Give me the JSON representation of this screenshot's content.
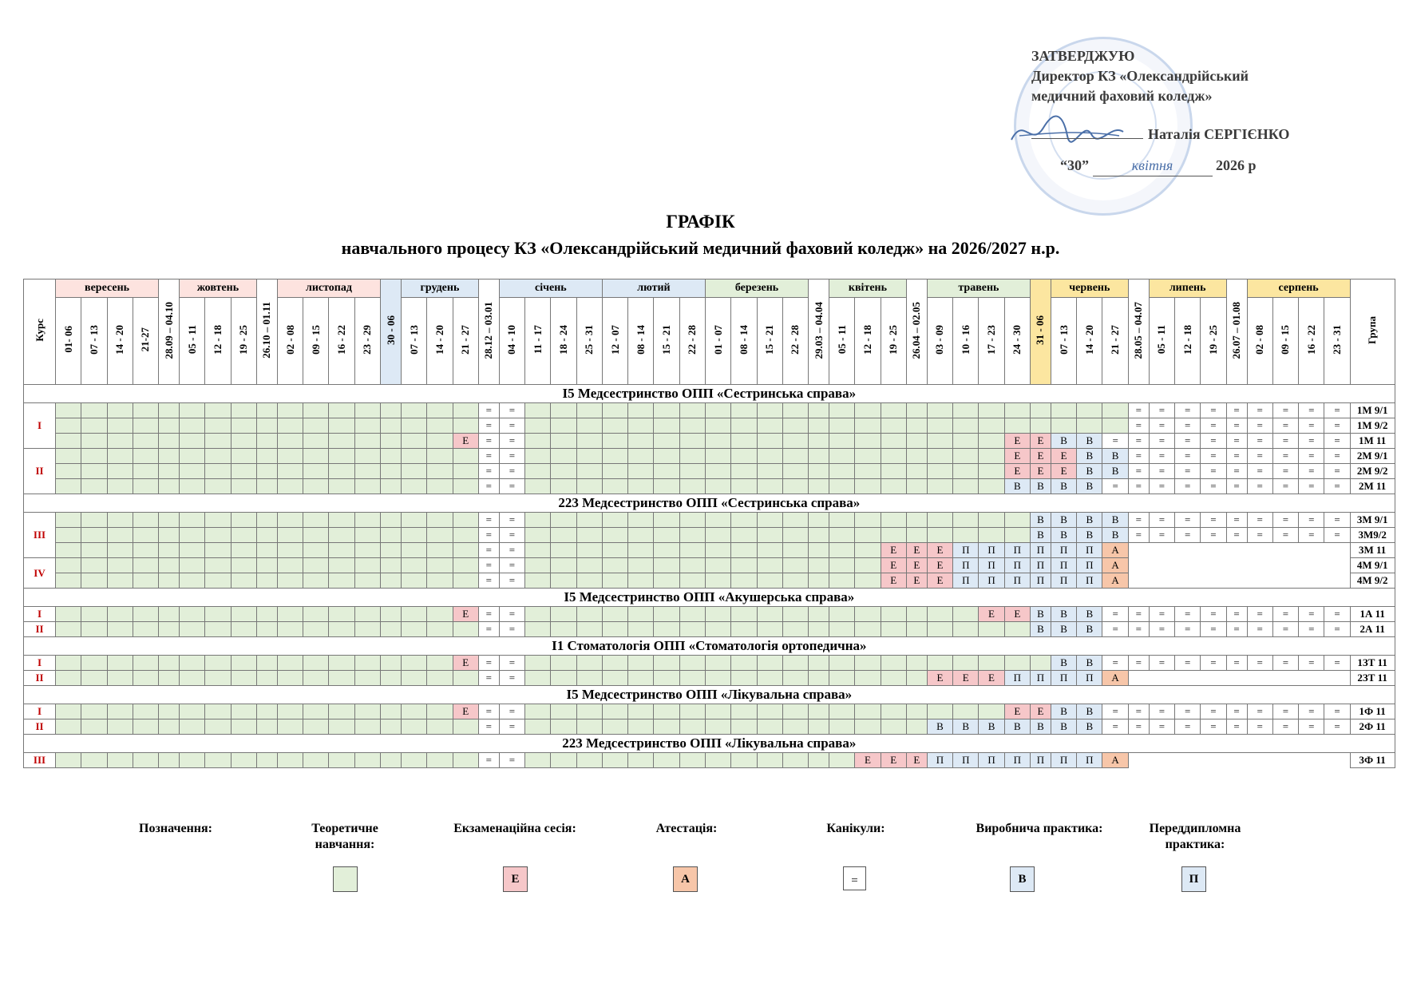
{
  "approval": {
    "line1": "ЗАТВЕРДЖУЮ",
    "line2": "Директор  КЗ «Олександрійський",
    "line3": "медичний фаховий коледж»",
    "director": "Наталія СЕРГІЄНКО",
    "date_day": "“30”",
    "date_month": "квітня",
    "date_year": "2026 р"
  },
  "title": "ГРАФІК",
  "subtitle": "навчального процесу КЗ «Олександрійський медичний фаховий коледж» на 2026/2027 н.р.",
  "headers": {
    "kurs": "Курс",
    "grupa": "Група",
    "months": [
      {
        "label": "вересень",
        "span": 4,
        "color": "pink"
      },
      {
        "label": "",
        "span": 1,
        "vertical": "28.09 – 04.10",
        "color": "white"
      },
      {
        "label": "жовтень",
        "span": 3,
        "color": "pink"
      },
      {
        "label": "",
        "span": 1,
        "vertical": "26.10 – 01.11",
        "color": "white"
      },
      {
        "label": "листопад",
        "span": 4,
        "color": "pink"
      },
      {
        "label": "",
        "span": 1,
        "vertical": "30 - 06",
        "color": "blue"
      },
      {
        "label": "грудень",
        "span": 3,
        "color": "blue"
      },
      {
        "label": "",
        "span": 1,
        "vertical": "28.12 – 03.01",
        "color": "white"
      },
      {
        "label": "січень",
        "span": 4,
        "color": "blue"
      },
      {
        "label": "лютий",
        "span": 4,
        "color": "blue"
      },
      {
        "label": "березень",
        "span": 4,
        "color": "green"
      },
      {
        "label": "",
        "span": 1,
        "vertical": "29.03 – 04.04",
        "color": "white"
      },
      {
        "label": "квітень",
        "span": 3,
        "color": "green"
      },
      {
        "label": "",
        "span": 1,
        "vertical": "26.04 – 02.05",
        "color": "white"
      },
      {
        "label": "травень",
        "span": 4,
        "color": "green"
      },
      {
        "label": "",
        "span": 1,
        "vertical": "31 - 06",
        "color": "yellow"
      },
      {
        "label": "червень",
        "span": 3,
        "color": "yellow"
      },
      {
        "label": "",
        "span": 1,
        "vertical": "28.05 – 04.07",
        "color": "white"
      },
      {
        "label": "липень",
        "span": 3,
        "color": "yellow"
      },
      {
        "label": "",
        "span": 1,
        "vertical": "26.07 – 01.08",
        "color": "white"
      },
      {
        "label": "серпень",
        "span": 4,
        "color": "yellow"
      }
    ],
    "weeks": [
      "01- 06",
      "07 - 13",
      "14 - 20",
      "21-27",
      "28.09 – 04.10",
      "05 - 11",
      "12 - 18",
      "19 - 25",
      "26.10 – 01.11",
      "02 - 08",
      "09 - 15",
      "16 - 22",
      "23 - 29",
      "30 - 06",
      "07 - 13",
      "14 - 20",
      "21 - 27",
      "28.12 – 03.01",
      "04 - 10",
      "11 - 17",
      "18 - 24",
      "25 - 31",
      "12 - 07",
      "08 - 14",
      "15 - 21",
      "22 - 28",
      "01 - 07",
      "08 - 14",
      "15 - 21",
      "22 - 28",
      "29.03 – 04.04",
      "05 - 11",
      "12 - 18",
      "19 - 25",
      "26.04 – 02.05",
      "03 - 09",
      "10 - 16",
      "17 - 23",
      "24 - 30",
      "31 - 06",
      "07 - 13",
      "14 - 20",
      "21 - 27",
      "28.05 – 04.07",
      "05 - 11",
      "12 - 18",
      "19 - 25",
      "26.07 – 01.08",
      "02 - 08",
      "09 - 15",
      "16 - 22",
      "23 - 31"
    ]
  },
  "sections": [
    {
      "title": "І5 Медсестринство ОПП «Сестринська справа»",
      "courses": [
        {
          "kurs": "І",
          "rows": [
            {
              "grupa": "1М 9/1",
              "runs": [
                [
                  "t",
                  17
                ],
                [
                  "k",
                  2
                ],
                [
                  "t",
                  24
                ],
                [
                  "k",
                  9
                ]
              ]
            },
            {
              "grupa": "1М 9/2",
              "runs": [
                [
                  "t",
                  17
                ],
                [
                  "k",
                  2
                ],
                [
                  "t",
                  24
                ],
                [
                  "k",
                  9
                ]
              ]
            },
            {
              "grupa": "1М 11",
              "runs": [
                [
                  "t",
                  16
                ],
                [
                  "e",
                  1
                ],
                [
                  "k",
                  2
                ],
                [
                  "t",
                  19
                ],
                [
                  "e",
                  2
                ],
                [
                  "v",
                  2
                ],
                [
                  "k",
                  10
                ]
              ]
            }
          ]
        },
        {
          "kurs": "ІІ",
          "rows": [
            {
              "grupa": "2М 9/1",
              "runs": [
                [
                  "t",
                  17
                ],
                [
                  "k",
                  2
                ],
                [
                  "t",
                  19
                ],
                [
                  "e",
                  3
                ],
                [
                  "v",
                  2
                ],
                [
                  "k",
                  9
                ]
              ]
            },
            {
              "grupa": "2М 9/2",
              "runs": [
                [
                  "t",
                  17
                ],
                [
                  "k",
                  2
                ],
                [
                  "t",
                  19
                ],
                [
                  "e",
                  3
                ],
                [
                  "v",
                  2
                ],
                [
                  "k",
                  9
                ]
              ]
            },
            {
              "grupa": "2М 11",
              "runs": [
                [
                  "t",
                  17
                ],
                [
                  "k",
                  2
                ],
                [
                  "t",
                  19
                ],
                [
                  "v",
                  4
                ],
                [
                  "k",
                  10
                ]
              ]
            }
          ]
        }
      ]
    },
    {
      "title": "223 Медсестринство ОПП «Сестринська справа»",
      "courses": [
        {
          "kurs": "ІІІ",
          "rows": [
            {
              "grupa": "3М 9/1",
              "runs": [
                [
                  "t",
                  17
                ],
                [
                  "k",
                  2
                ],
                [
                  "t",
                  20
                ],
                [
                  "v",
                  4
                ],
                [
                  "k",
                  9
                ]
              ]
            },
            {
              "grupa": "3М9/2",
              "runs": [
                [
                  "t",
                  17
                ],
                [
                  "k",
                  2
                ],
                [
                  "t",
                  20
                ],
                [
                  "v",
                  4
                ],
                [
                  "k",
                  9
                ]
              ]
            },
            {
              "grupa": "3М 11",
              "runs": [
                [
                  "t",
                  17
                ],
                [
                  "k",
                  2
                ],
                [
                  "t",
                  14
                ],
                [
                  "e",
                  3
                ],
                [
                  "p",
                  6
                ],
                [
                  "a",
                  1
                ],
                [
                  "n",
                  9
                ]
              ]
            }
          ]
        },
        {
          "kurs": "IV",
          "rows": [
            {
              "grupa": "4М 9/1",
              "runs": [
                [
                  "t",
                  17
                ],
                [
                  "k",
                  2
                ],
                [
                  "t",
                  14
                ],
                [
                  "e",
                  3
                ],
                [
                  "p",
                  6
                ],
                [
                  "a",
                  1
                ],
                [
                  "n",
                  9
                ]
              ]
            },
            {
              "grupa": "4М 9/2",
              "runs": [
                [
                  "t",
                  17
                ],
                [
                  "k",
                  2
                ],
                [
                  "t",
                  14
                ],
                [
                  "e",
                  3
                ],
                [
                  "p",
                  6
                ],
                [
                  "a",
                  1
                ],
                [
                  "n",
                  9
                ]
              ]
            }
          ]
        }
      ]
    },
    {
      "title": "І5 Медсестринство ОПП «Акушерська справа»",
      "courses": [
        {
          "kurs": "І",
          "rows": [
            {
              "grupa": "1А 11",
              "runs": [
                [
                  "t",
                  16
                ],
                [
                  "e",
                  1
                ],
                [
                  "k",
                  2
                ],
                [
                  "t",
                  18
                ],
                [
                  "e",
                  2
                ],
                [
                  "v",
                  3
                ],
                [
                  "k",
                  10
                ]
              ]
            }
          ]
        },
        {
          "kurs": "ІІ",
          "rows": [
            {
              "grupa": "2А 11",
              "runs": [
                [
                  "t",
                  17
                ],
                [
                  "k",
                  2
                ],
                [
                  "t",
                  20
                ],
                [
                  "v",
                  3
                ],
                [
                  "k",
                  10
                ]
              ]
            }
          ]
        }
      ]
    },
    {
      "title": "І1 Стоматологія ОПП «Стоматологія ортопедична»",
      "courses": [
        {
          "kurs": "І",
          "rows": [
            {
              "grupa": "1ЗТ 11",
              "runs": [
                [
                  "t",
                  16
                ],
                [
                  "e",
                  1
                ],
                [
                  "k",
                  2
                ],
                [
                  "t",
                  21
                ],
                [
                  "v",
                  2
                ],
                [
                  "k",
                  10
                ]
              ]
            }
          ]
        },
        {
          "kurs": "ІІ",
          "rows": [
            {
              "grupa": "2ЗТ 11",
              "runs": [
                [
                  "t",
                  17
                ],
                [
                  "k",
                  2
                ],
                [
                  "t",
                  16
                ],
                [
                  "e",
                  3
                ],
                [
                  "p",
                  4
                ],
                [
                  "a",
                  1
                ],
                [
                  "n",
                  9
                ]
              ]
            }
          ]
        }
      ]
    },
    {
      "title": "І5 Медсестринство ОПП «Лікувальна справа»",
      "courses": [
        {
          "kurs": "І",
          "rows": [
            {
              "grupa": "1Ф 11",
              "runs": [
                [
                  "t",
                  16
                ],
                [
                  "e",
                  1
                ],
                [
                  "k",
                  2
                ],
                [
                  "t",
                  19
                ],
                [
                  "e",
                  2
                ],
                [
                  "v",
                  2
                ],
                [
                  "k",
                  10
                ]
              ]
            }
          ]
        },
        {
          "kurs": "ІІ",
          "rows": [
            {
              "grupa": "2Ф 11",
              "runs": [
                [
                  "t",
                  17
                ],
                [
                  "k",
                  2
                ],
                [
                  "t",
                  16
                ],
                [
                  "v",
                  7
                ],
                [
                  "k",
                  10
                ]
              ]
            }
          ]
        }
      ]
    },
    {
      "title": "223 Медсестринство ОПП «Лікувальна справа»",
      "courses": [
        {
          "kurs": "ІІІ",
          "rows": [
            {
              "grupa": "3Ф 11",
              "runs": [
                [
                  "t",
                  17
                ],
                [
                  "k",
                  2
                ],
                [
                  "t",
                  13
                ],
                [
                  "e",
                  3
                ],
                [
                  "p",
                  7
                ],
                [
                  "a",
                  1
                ],
                [
                  "n",
                  9
                ]
              ]
            }
          ]
        }
      ]
    }
  ],
  "symbols": {
    "t": "",
    "e": "Е",
    "a": "А",
    "k": "=",
    "v": "В",
    "p": "П",
    "n": ""
  },
  "legend": {
    "title": "Позначення:",
    "items": [
      {
        "key": "t",
        "label": "Теоретичне навчання:",
        "symbol": ""
      },
      {
        "key": "e",
        "label": "Екзаменаційна сесія:",
        "symbol": "Е"
      },
      {
        "key": "a",
        "label": "Атестація:",
        "symbol": "А"
      },
      {
        "key": "k",
        "label": "Канікули:",
        "symbol": "="
      },
      {
        "key": "v",
        "label": "Виробнича практика:",
        "symbol": "В"
      },
      {
        "key": "p",
        "label": "Переддипломна практика:",
        "symbol": "П"
      }
    ]
  },
  "colors": {
    "theory": "#e2efd9",
    "exam": "#f6c7c9",
    "attestation": "#f7c6a9",
    "holiday": "#ffffff",
    "practice": "#dde9f5",
    "kurs_text": "#c00000"
  }
}
